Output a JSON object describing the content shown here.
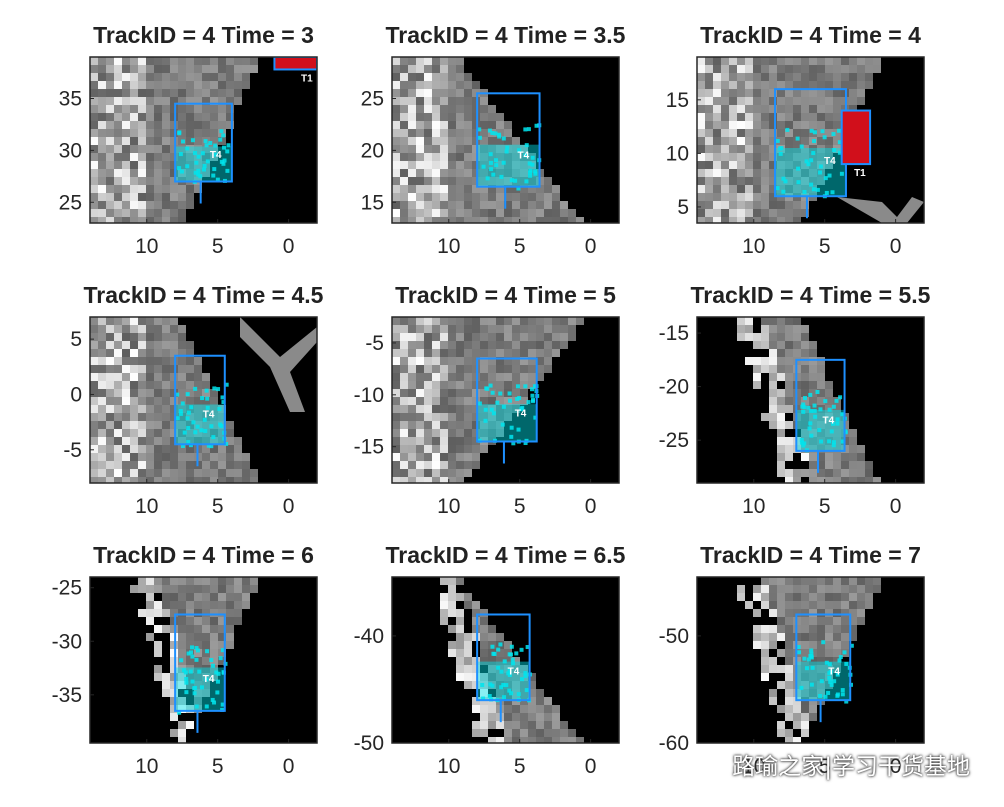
{
  "chart_data": [
    {
      "type": "heatmap",
      "title": "TrackID = 4 Time = 3",
      "xlim": [
        14,
        -2
      ],
      "ylim": [
        23,
        39
      ],
      "xticks": [
        10,
        5,
        0
      ],
      "yticks": [
        25,
        30,
        35
      ],
      "xtick_labels": [
        "10",
        "5",
        "0"
      ],
      "ytick_labels": [
        "25",
        "30",
        "35"
      ],
      "track_box": {
        "label": "T4",
        "x0": 8,
        "x1": 4,
        "y0": 27,
        "y1": 34.5
      },
      "other_tracks": [
        {
          "label": "T1",
          "x0": 1,
          "x1": -2,
          "y0": 37.8,
          "y1": 39
        }
      ]
    },
    {
      "type": "heatmap",
      "title": "TrackID = 4 Time = 3.5",
      "xlim": [
        14,
        -2
      ],
      "ylim": [
        13,
        29
      ],
      "xticks": [
        10,
        5,
        0
      ],
      "yticks": [
        15,
        20,
        25
      ],
      "xtick_labels": [
        "10",
        "5",
        "0"
      ],
      "ytick_labels": [
        "15",
        "20",
        "25"
      ],
      "track_box": {
        "label": "T4",
        "x0": 8,
        "x1": 3.6,
        "y0": 16.5,
        "y1": 25.5
      },
      "other_tracks": []
    },
    {
      "type": "heatmap",
      "title": "TrackID = 4 Time = 4",
      "xlim": [
        14,
        -2
      ],
      "ylim": [
        3.5,
        19
      ],
      "xticks": [
        10,
        5,
        0
      ],
      "yticks": [
        5,
        10,
        15
      ],
      "xtick_labels": [
        "10",
        "5",
        "0"
      ],
      "ytick_labels": [
        "5",
        "10",
        "15"
      ],
      "track_box": {
        "label": "T4",
        "x0": 8.5,
        "x1": 3.5,
        "y0": 6,
        "y1": 16
      },
      "other_tracks": [
        {
          "label": "T1",
          "x0": 3.8,
          "x1": 1.8,
          "y0": 9,
          "y1": 14
        }
      ]
    },
    {
      "type": "heatmap",
      "title": "TrackID = 4 Time = 4.5",
      "xlim": [
        14,
        -2
      ],
      "ylim": [
        -8,
        7
      ],
      "xticks": [
        10,
        5,
        0
      ],
      "yticks": [
        -5,
        0,
        5
      ],
      "xtick_labels": [
        "10",
        "5",
        "0"
      ],
      "ytick_labels": [
        "-5",
        "0",
        "5"
      ],
      "track_box": {
        "label": "T4",
        "x0": 8,
        "x1": 4.5,
        "y0": -4.5,
        "y1": 3.5
      },
      "other_tracks": []
    },
    {
      "type": "heatmap",
      "title": "TrackID = 4 Time = 5",
      "xlim": [
        14,
        -2
      ],
      "ylim": [
        -18.5,
        -2.5
      ],
      "xticks": [
        10,
        5,
        0
      ],
      "yticks": [
        -15,
        -10,
        -5
      ],
      "xtick_labels": [
        "10",
        "5",
        "0"
      ],
      "ytick_labels": [
        "-15",
        "-10",
        "-5"
      ],
      "track_box": {
        "label": "T4",
        "x0": 8,
        "x1": 3.8,
        "y0": -14.5,
        "y1": -6.5
      },
      "other_tracks": []
    },
    {
      "type": "heatmap",
      "title": "TrackID = 4 Time = 5.5",
      "xlim": [
        14,
        -2
      ],
      "ylim": [
        -29,
        -13.5
      ],
      "xticks": [
        10,
        5,
        0
      ],
      "yticks": [
        -25,
        -20,
        -15
      ],
      "xtick_labels": [
        "10",
        "5",
        "0"
      ],
      "ytick_labels": [
        "-25",
        "-20",
        "-15"
      ],
      "track_box": {
        "label": "T4",
        "x0": 7,
        "x1": 3.6,
        "y0": -26,
        "y1": -17.5
      },
      "other_tracks": []
    },
    {
      "type": "heatmap",
      "title": "TrackID = 4 Time = 6",
      "xlim": [
        14,
        -2
      ],
      "ylim": [
        -39.5,
        -24
      ],
      "xticks": [
        10,
        5,
        0
      ],
      "yticks": [
        -35,
        -30,
        -25
      ],
      "xtick_labels": [
        "10",
        "5",
        "0"
      ],
      "ytick_labels": [
        "-35",
        "-30",
        "-25"
      ],
      "track_box": {
        "label": "T4",
        "x0": 8,
        "x1": 4.5,
        "y0": -36.5,
        "y1": -27.5
      },
      "other_tracks": []
    },
    {
      "type": "heatmap",
      "title": "TrackID = 4 Time = 6.5",
      "xlim": [
        14,
        -2
      ],
      "ylim": [
        -50,
        -34.5
      ],
      "xticks": [
        10,
        5,
        0
      ],
      "yticks": [
        -50,
        -40
      ],
      "xtick_labels": [
        "10",
        "5",
        "0"
      ],
      "ytick_labels": [
        "-50",
        "-40"
      ],
      "track_box": {
        "label": "T4",
        "x0": 8,
        "x1": 4.3,
        "y0": -46,
        "y1": -38
      },
      "other_tracks": []
    },
    {
      "type": "heatmap",
      "title": "TrackID = 4 Time = 7",
      "xlim": [
        14,
        -2
      ],
      "ylim": [
        -60,
        -44.5
      ],
      "xticks": [
        10,
        5,
        0
      ],
      "yticks": [
        -60,
        -50
      ],
      "xtick_labels": [
        "10",
        "5",
        "0"
      ],
      "ytick_labels": [
        "-60",
        "-50"
      ],
      "track_box": {
        "label": "T4",
        "x0": 7,
        "x1": 3.2,
        "y0": -56,
        "y1": -48
      },
      "other_tracks": []
    }
  ],
  "colors": {
    "background": "#000000",
    "road": "#7a7a7a",
    "light": "#bdbdbd",
    "bright": "#f2f2f2",
    "box": "#1e90ff",
    "cyan": "#00e5ee",
    "red": "#d10f1b",
    "magenta": "#c020c0"
  },
  "watermark": {
    "text": "路瑜之家|学习干货基地",
    "icon": "wechat-icon"
  }
}
